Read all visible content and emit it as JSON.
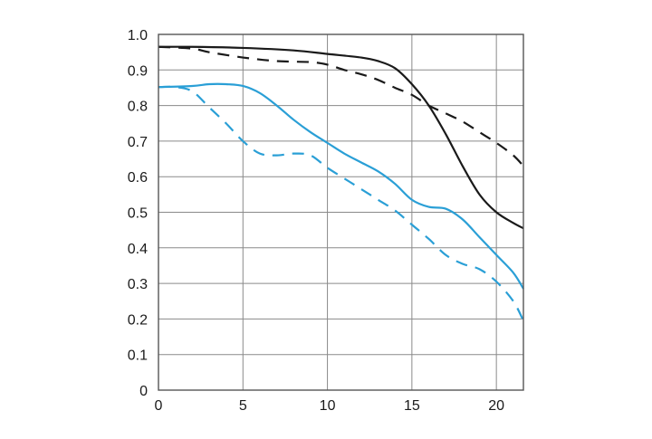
{
  "chart_data": {
    "type": "line",
    "title": "",
    "xlabel": "",
    "ylabel": "",
    "xlim": [
      0,
      21.6
    ],
    "ylim": [
      0,
      1.0
    ],
    "grid": true,
    "x_ticks": [
      0,
      5,
      10,
      15,
      20
    ],
    "x_tick_labels": [
      "0",
      "5",
      "10",
      "15",
      "20"
    ],
    "y_ticks": [
      0,
      0.1,
      0.2,
      0.3,
      0.4,
      0.5,
      0.6,
      0.7,
      0.8,
      0.9,
      1.0
    ],
    "y_tick_labels": [
      "0",
      "0.1",
      "0.2",
      "0.3",
      "0.4",
      "0.5",
      "0.6",
      "0.7",
      "0.8",
      "0.9",
      "1.0"
    ],
    "series": [
      {
        "color": "#1a1a1a",
        "line_style": "solid",
        "points": [
          [
            0,
            0.965
          ],
          [
            2,
            0.965
          ],
          [
            5,
            0.962
          ],
          [
            8,
            0.955
          ],
          [
            10,
            0.945
          ],
          [
            12,
            0.935
          ],
          [
            13,
            0.925
          ],
          [
            14,
            0.905
          ],
          [
            15,
            0.86
          ],
          [
            16,
            0.8
          ],
          [
            17,
            0.72
          ],
          [
            18,
            0.63
          ],
          [
            19,
            0.55
          ],
          [
            20,
            0.5
          ],
          [
            21,
            0.47
          ],
          [
            21.6,
            0.455
          ]
        ]
      },
      {
        "color": "#1a1a1a",
        "line_style": "dashed",
        "points": [
          [
            0,
            0.965
          ],
          [
            2,
            0.96
          ],
          [
            3,
            0.95
          ],
          [
            5,
            0.935
          ],
          [
            7,
            0.925
          ],
          [
            9,
            0.922
          ],
          [
            10,
            0.915
          ],
          [
            11,
            0.9
          ],
          [
            12,
            0.888
          ],
          [
            13,
            0.872
          ],
          [
            14,
            0.85
          ],
          [
            15,
            0.83
          ],
          [
            16,
            0.8
          ],
          [
            17,
            0.778
          ],
          [
            18,
            0.755
          ],
          [
            19,
            0.725
          ],
          [
            20,
            0.695
          ],
          [
            21,
            0.66
          ],
          [
            21.6,
            0.63
          ]
        ]
      },
      {
        "color": "#2a9fd6",
        "line_style": "solid",
        "points": [
          [
            0,
            0.852
          ],
          [
            2,
            0.855
          ],
          [
            3,
            0.86
          ],
          [
            4,
            0.86
          ],
          [
            5,
            0.855
          ],
          [
            6,
            0.835
          ],
          [
            7,
            0.8
          ],
          [
            8,
            0.76
          ],
          [
            9,
            0.725
          ],
          [
            10,
            0.695
          ],
          [
            11,
            0.665
          ],
          [
            12,
            0.64
          ],
          [
            13,
            0.615
          ],
          [
            14,
            0.58
          ],
          [
            15,
            0.535
          ],
          [
            16,
            0.515
          ],
          [
            17,
            0.51
          ],
          [
            18,
            0.48
          ],
          [
            19,
            0.43
          ],
          [
            20,
            0.38
          ],
          [
            21,
            0.33
          ],
          [
            21.6,
            0.285
          ]
        ]
      },
      {
        "color": "#2a9fd6",
        "line_style": "dashed",
        "points": [
          [
            0,
            0.852
          ],
          [
            1,
            0.852
          ],
          [
            2,
            0.84
          ],
          [
            3,
            0.795
          ],
          [
            4,
            0.75
          ],
          [
            5,
            0.7
          ],
          [
            6,
            0.665
          ],
          [
            7,
            0.66
          ],
          [
            8,
            0.665
          ],
          [
            9,
            0.66
          ],
          [
            10,
            0.625
          ],
          [
            11,
            0.595
          ],
          [
            12,
            0.565
          ],
          [
            13,
            0.535
          ],
          [
            14,
            0.505
          ],
          [
            15,
            0.465
          ],
          [
            16,
            0.425
          ],
          [
            17,
            0.38
          ],
          [
            18,
            0.355
          ],
          [
            19,
            0.34
          ],
          [
            20,
            0.305
          ],
          [
            21,
            0.25
          ],
          [
            21.6,
            0.195
          ]
        ]
      }
    ]
  }
}
